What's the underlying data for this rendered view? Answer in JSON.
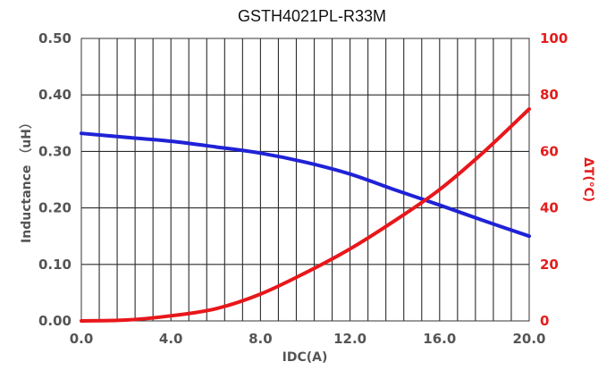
{
  "chart_data": {
    "type": "line",
    "title": "GSTH4021PL-R33M",
    "xlabel": "IDC(A)",
    "ylabel": "Inductance （uH）",
    "y2label": "ΔT(℃)",
    "xlim": [
      0,
      20
    ],
    "ylim": [
      0,
      0.5
    ],
    "y2lim": [
      0,
      100
    ],
    "x_ticks": [
      "0.0",
      "4.0",
      "8.0",
      "12.0",
      "16.0",
      "20.0"
    ],
    "y_ticks": [
      "0.00",
      "0.10",
      "0.20",
      "0.30",
      "0.40",
      "0.50"
    ],
    "y2_ticks": [
      "0",
      "20",
      "40",
      "60",
      "80",
      "100"
    ],
    "grid": true,
    "series": [
      {
        "axis": "left",
        "color": "#1f22d6",
        "x": [
          0,
          2,
          4,
          6,
          8,
          10,
          12,
          14,
          16,
          18,
          20
        ],
        "values": [
          0.332,
          0.325,
          0.318,
          0.308,
          0.297,
          0.281,
          0.26,
          0.232,
          0.205,
          0.177,
          0.15
        ]
      },
      {
        "axis": "right",
        "color": "#e8171b",
        "x": [
          0,
          2,
          4,
          6,
          8,
          10,
          12,
          14,
          16,
          18,
          20
        ],
        "values": [
          0,
          0.3,
          1.8,
          4.3,
          9.5,
          17.0,
          25.5,
          35.5,
          46.5,
          60.0,
          75.0
        ]
      }
    ]
  }
}
